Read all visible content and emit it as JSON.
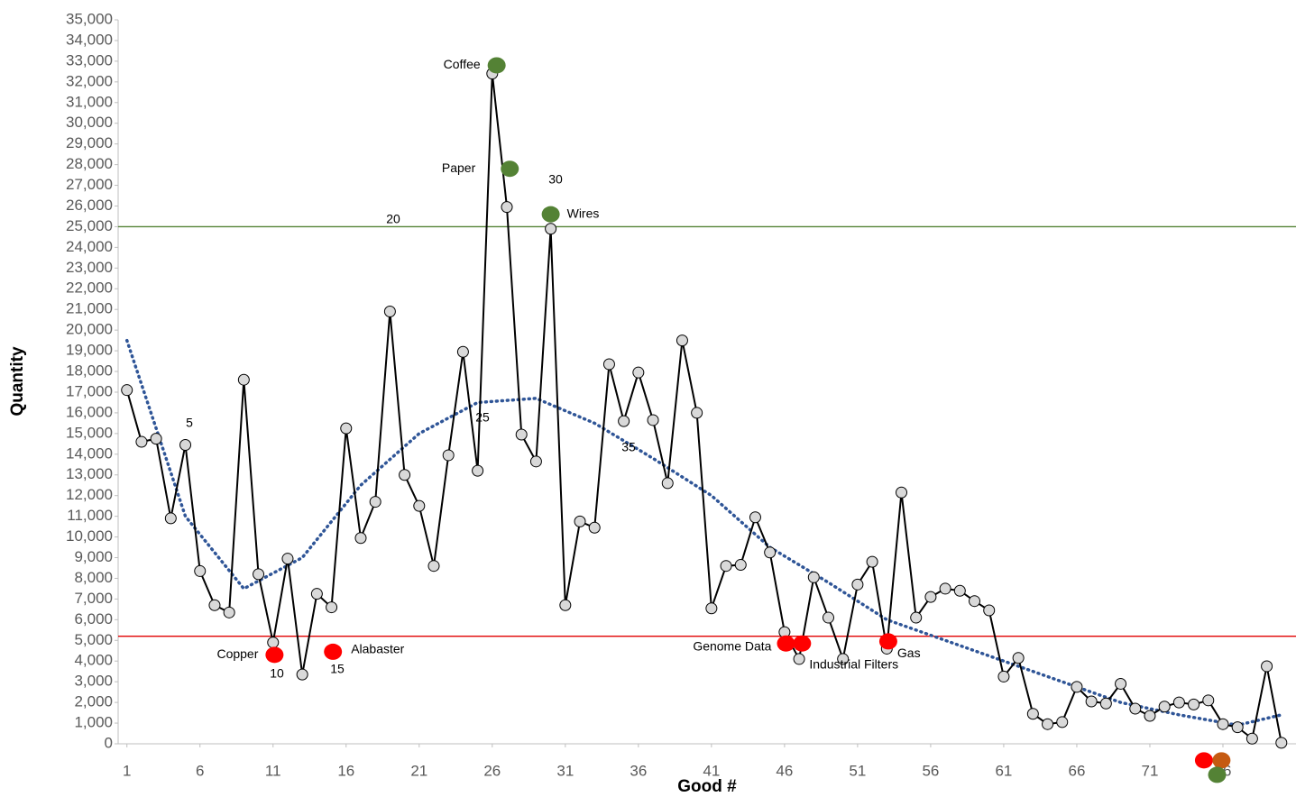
{
  "chart_data": {
    "type": "line",
    "x_label": "Good #",
    "y_label": "Quantity",
    "xlim": [
      0.4,
      81
    ],
    "ylim": [
      0,
      35000
    ],
    "xticks": [
      1,
      6,
      11,
      16,
      21,
      26,
      31,
      36,
      41,
      46,
      51,
      56,
      61,
      66,
      71,
      76
    ],
    "yticks": [
      0,
      {
        "value": 1000,
        "label": "1,000"
      },
      {
        "value": 2000,
        "label": "2,000"
      },
      {
        "value": 3000,
        "label": "3,000"
      },
      {
        "value": 4000,
        "label": "4,000"
      },
      {
        "value": 5000,
        "label": "5,000"
      },
      {
        "value": 6000,
        "label": "6,000"
      },
      {
        "value": 7000,
        "label": "7,000"
      },
      {
        "value": 8000,
        "label": "8,000"
      },
      {
        "value": 9000,
        "label": "9,000"
      },
      {
        "value": 10000,
        "label": "10,000"
      },
      {
        "value": 11000,
        "label": "11,000"
      },
      {
        "value": 12000,
        "label": "12,000"
      },
      {
        "value": 13000,
        "label": "13,000"
      },
      {
        "value": 14000,
        "label": "14,000"
      },
      {
        "value": 15000,
        "label": "15,000"
      },
      {
        "value": 16000,
        "label": "16,000"
      },
      {
        "value": 17000,
        "label": "17,000"
      },
      {
        "value": 18000,
        "label": "18,000"
      },
      {
        "value": 19000,
        "label": "19,000"
      },
      {
        "value": 20000,
        "label": "20,000"
      },
      {
        "value": 21000,
        "label": "21,000"
      },
      {
        "value": 22000,
        "label": "22,000"
      },
      {
        "value": 23000,
        "label": "23,000"
      },
      {
        "value": 24000,
        "label": "24,000"
      },
      {
        "value": 25000,
        "label": "25,000"
      },
      {
        "value": 26000,
        "label": "26,000"
      },
      {
        "value": 27000,
        "label": "27,000"
      },
      {
        "value": 28000,
        "label": "28,000"
      },
      {
        "value": 29000,
        "label": "29,000"
      },
      {
        "value": 30000,
        "label": "30,000"
      },
      {
        "value": 31000,
        "label": "31,000"
      },
      {
        "value": 32000,
        "label": "32,000"
      },
      {
        "value": 33000,
        "label": "33,000"
      },
      {
        "value": 34000,
        "label": "34,000"
      },
      {
        "value": 35000,
        "label": "35,000"
      }
    ],
    "series": [
      {
        "color": "#000000",
        "marker_color": "#d9d9d9",
        "x": [
          1,
          2,
          3,
          4,
          5,
          6,
          7,
          8,
          9,
          10,
          11,
          12,
          13,
          14,
          15,
          16,
          17,
          18,
          19,
          20,
          21,
          22,
          23,
          24,
          25,
          26,
          27,
          28,
          29,
          30,
          31,
          32,
          33,
          34,
          35,
          36,
          37,
          38,
          39,
          40,
          41,
          42,
          43,
          44,
          45,
          46,
          47,
          48,
          49,
          50,
          51,
          52,
          53,
          54,
          55,
          56,
          57,
          58,
          59,
          60,
          61,
          62,
          63,
          64,
          65,
          66,
          67,
          68,
          69,
          70,
          71,
          72,
          73,
          74,
          75,
          76,
          77,
          78,
          79,
          80
        ],
        "values": [
          17100,
          14600,
          14750,
          10900,
          14450,
          8350,
          6700,
          6350,
          17600,
          8200,
          4900,
          8950,
          3350,
          7250,
          6600,
          15250,
          9950,
          11700,
          20900,
          13000,
          11500,
          8600,
          13950,
          18950,
          13200,
          32400,
          25950,
          14950,
          13650,
          24900,
          6700,
          10750,
          10450,
          18350,
          15600,
          17950,
          15650,
          12600,
          19500,
          16000,
          6550,
          8600,
          8650,
          10950,
          9250,
          5400,
          4100,
          8050,
          6100,
          4100,
          7700,
          8800,
          4600,
          12150,
          6100,
          7100,
          7500,
          7400,
          6900,
          6450,
          3250,
          4150,
          1450,
          950,
          1050,
          2750,
          2050,
          1950,
          2900,
          1700,
          1350,
          1800,
          2000,
          1900,
          2100,
          950,
          800,
          250,
          3750,
          50
        ]
      }
    ],
    "trend": {
      "color": "#2f5597",
      "x": [
        1,
        5,
        9,
        13,
        17,
        21,
        25,
        29,
        33,
        37,
        41,
        45,
        49,
        53,
        57,
        61,
        65,
        69,
        73,
        77,
        80
      ],
      "values": [
        19500,
        11000,
        7500,
        9000,
        12500,
        15000,
        16500,
        16700,
        15500,
        13800,
        12000,
        9500,
        7800,
        6000,
        5000,
        4000,
        3000,
        2000,
        1400,
        900,
        1400
      ]
    },
    "reference_lines": [
      {
        "value": 25000,
        "color": "#548235"
      },
      {
        "value": 5200,
        "color": "#e00000"
      }
    ],
    "highlights": [
      {
        "name": "Coffee",
        "x": 26.3,
        "y": 32800,
        "color": "#548235"
      },
      {
        "name": "Paper",
        "x": 27.2,
        "y": 27800,
        "color": "#548235"
      },
      {
        "name": "Wires",
        "x": 30,
        "y": 25600,
        "color": "#548235"
      },
      {
        "name": "Copper",
        "x": 11.1,
        "y": 4300,
        "color": "#ff0000"
      },
      {
        "name": "Alabaster",
        "x": 15.1,
        "y": 4450,
        "color": "#ff0000"
      },
      {
        "name": "Genome Data",
        "x": 46.1,
        "y": 4850,
        "color": "#ff0000"
      },
      {
        "name": "Industrial Filters",
        "x": 47.2,
        "y": 4850,
        "color": "#ff0000"
      },
      {
        "name": "Gas",
        "x": 53.1,
        "y": 4950,
        "color": "#ff0000"
      },
      {
        "name": null,
        "x": 74.7,
        "y": -800,
        "color": "#ff0000"
      },
      {
        "name": null,
        "x": 75.9,
        "y": -800,
        "color": "#c55a11"
      },
      {
        "name": null,
        "x": 75.6,
        "y": -1500,
        "color": "#548235"
      }
    ],
    "point_labels": [
      "5",
      "10",
      "15",
      "20",
      "25",
      "30",
      "35"
    ]
  }
}
